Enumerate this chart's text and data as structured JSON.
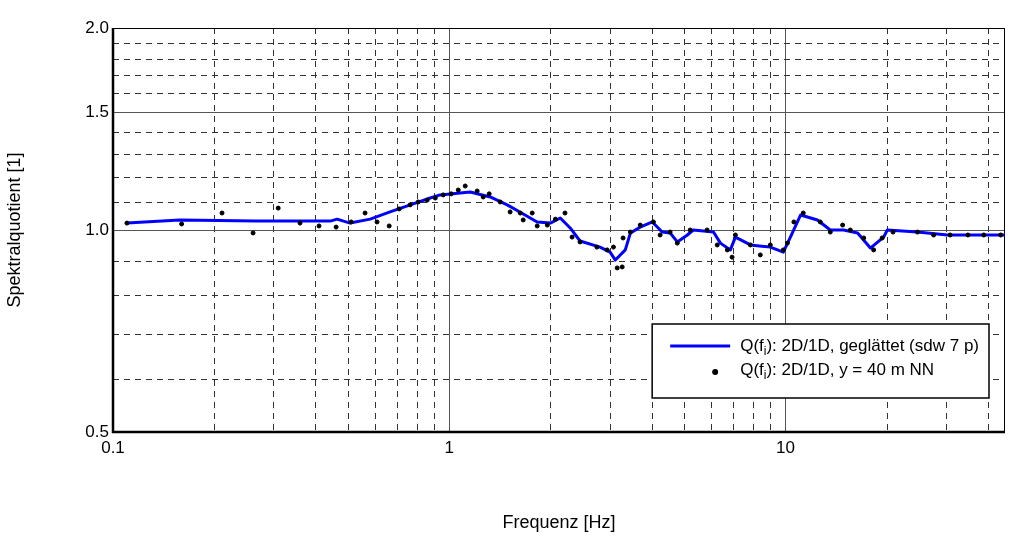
{
  "chart_data": {
    "type": "line",
    "xlabel": "Frequenz [Hz]",
    "ylabel": "Spektralquotient [1]",
    "log": "xy",
    "xlim": [
      0.1,
      45
    ],
    "ylim": [
      0.5,
      2
    ],
    "xticks": [
      0.1,
      {
        "value": 0.2,
        "label": null
      },
      {
        "value": 0.3,
        "label": null
      },
      {
        "value": 0.4,
        "label": null
      },
      {
        "value": 0.5,
        "label": null
      },
      {
        "value": 0.6,
        "label": null
      },
      {
        "value": 0.7,
        "label": null
      },
      {
        "value": 0.8,
        "label": null
      },
      {
        "value": 0.9,
        "label": null
      },
      1,
      {
        "value": 2,
        "label": null
      },
      {
        "value": 3,
        "label": null
      },
      {
        "value": 4,
        "label": null
      },
      {
        "value": 5,
        "label": null
      },
      {
        "value": 6,
        "label": null
      },
      {
        "value": 7,
        "label": null
      },
      {
        "value": 8,
        "label": null
      },
      {
        "value": 9,
        "label": null
      },
      10,
      {
        "value": 20,
        "label": null
      },
      {
        "value": 30,
        "label": null
      },
      {
        "value": 40,
        "label": null
      }
    ],
    "yticks": [
      0.5,
      {
        "value": 0.6,
        "label": null
      },
      {
        "value": 0.7,
        "label": null
      },
      {
        "value": 0.8,
        "label": null
      },
      {
        "value": 0.9,
        "label": null
      },
      {
        "value": 1,
        "label": "1.0"
      },
      {
        "value": 1.1,
        "label": null
      },
      {
        "value": 1.2,
        "label": null
      },
      {
        "value": 1.3,
        "label": null
      },
      {
        "value": 1.4,
        "label": null
      },
      1.5,
      {
        "value": 1.6,
        "label": null
      },
      {
        "value": 1.7,
        "label": null
      },
      {
        "value": 1.8,
        "label": null
      },
      {
        "value": 1.9,
        "label": null
      },
      {
        "value": 2,
        "label": "2.0"
      }
    ],
    "grid": true,
    "legend": "bottom right",
    "series": [
      {
        "name": "Q(f$_{i}$): 2D/1D, geglättet (sdw 7 p)",
        "color": "#0000ff",
        "marker": "none",
        "x": [
          0.11,
          0.158,
          0.293,
          0.443,
          0.464,
          0.507,
          0.582,
          0.667,
          0.766,
          0.878,
          0.94,
          1.155,
          1.324,
          1.488,
          1.827,
          2.0,
          2.14,
          2.29,
          2.45,
          2.81,
          3.01,
          3.12,
          3.34,
          3.46,
          3.7,
          4.02,
          4.3,
          4.54,
          4.77,
          5.11,
          5.32,
          6.11,
          6.41,
          6.86,
          7.1,
          7.87,
          9.02,
          9.86,
          10.35,
          11.1,
          12.45,
          13.6,
          14.9,
          16.4,
          17.9,
          19.6,
          20.1,
          24.7,
          30.3,
          45
        ],
        "values": [
          1.024,
          1.035,
          1.031,
          1.031,
          1.038,
          1.024,
          1.038,
          1.064,
          1.09,
          1.116,
          1.128,
          1.139,
          1.12,
          1.09,
          1.028,
          1.024,
          1.042,
          1.007,
          0.963,
          0.943,
          0.927,
          0.902,
          0.934,
          0.99,
          1.01,
          1.028,
          0.993,
          0.99,
          0.96,
          0.983,
          1.0,
          0.993,
          0.956,
          0.934,
          0.976,
          0.95,
          0.943,
          0.927,
          0.976,
          1.053,
          1.035,
          1.0,
          1.0,
          0.99,
          0.94,
          0.976,
          1.0,
          0.993,
          0.983,
          0.983
        ]
      },
      {
        "name": "Q(f$_{i}$): 2D/1D, y = 40 m NN",
        "type": "scatter",
        "color": "#000000",
        "marker": "circle",
        "x": [
          0.11,
          0.16,
          0.211,
          0.261,
          0.31,
          0.36,
          0.41,
          0.461,
          0.511,
          0.562,
          0.61,
          0.663,
          0.71,
          0.765,
          0.809,
          0.86,
          0.909,
          0.96,
          1.014,
          1.064,
          1.116,
          1.211,
          1.262,
          1.315,
          1.418,
          1.518,
          1.627,
          1.66,
          1.766,
          1.827,
          1.958,
          2.07,
          2.21,
          2.32,
          2.45,
          2.75,
          2.95,
          3.08,
          3.16,
          3.27,
          3.29,
          3.46,
          3.7,
          4.05,
          4.24,
          4.54,
          4.77,
          5.21,
          5.85,
          6.27,
          6.72,
          6.94,
          7.1,
          7.87,
          8.42,
          9.02,
          9.86,
          10.14,
          10.6,
          11.3,
          12.7,
          13.6,
          14.8,
          15.6,
          17.1,
          18.3,
          19.4,
          20.9,
          24.7,
          27.6,
          30.9,
          34.9,
          38.9,
          43.7
        ],
        "values": [
          1.024,
          1.021,
          1.06,
          0.99,
          1.078,
          1.024,
          1.014,
          1.01,
          1.028,
          1.06,
          1.028,
          1.014,
          1.075,
          1.09,
          1.101,
          1.108,
          1.116,
          1.128,
          1.132,
          1.147,
          1.163,
          1.143,
          1.12,
          1.132,
          1.101,
          1.064,
          1.06,
          1.035,
          1.06,
          1.014,
          1.017,
          1.038,
          1.06,
          0.976,
          0.96,
          0.943,
          0.934,
          0.943,
          0.878,
          0.881,
          0.973,
          0.993,
          1.017,
          1.028,
          0.983,
          0.993,
          0.956,
          1.0,
          1.0,
          0.95,
          0.934,
          0.911,
          0.983,
          0.95,
          0.918,
          0.95,
          0.934,
          0.956,
          1.028,
          1.06,
          1.028,
          0.993,
          1.017,
          1.0,
          0.973,
          0.934,
          0.973,
          0.993,
          0.993,
          0.983,
          0.983,
          0.983,
          0.983,
          0.983
        ]
      }
    ]
  }
}
